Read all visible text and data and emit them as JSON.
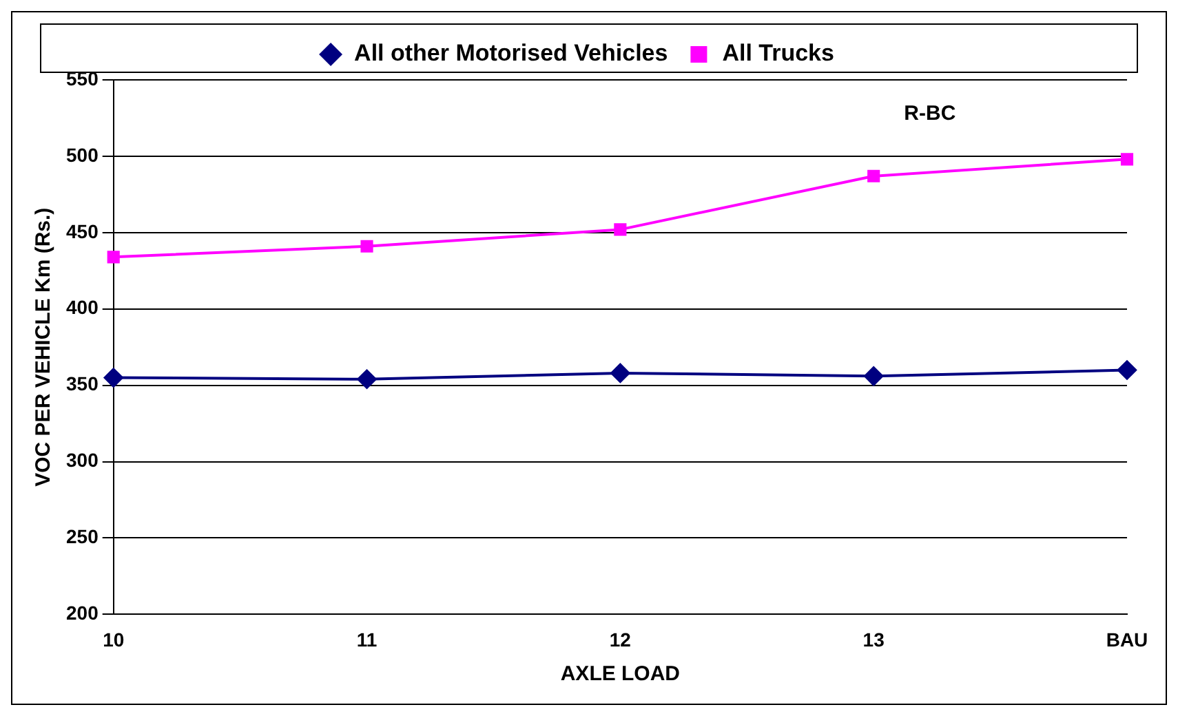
{
  "chart_data": {
    "type": "line",
    "xlabel": "AXLE LOAD",
    "ylabel": "VOC PER VEHICLE Km (Rs.)",
    "categories": [
      "10",
      "11",
      "12",
      "13",
      "BAU"
    ],
    "series": [
      {
        "name": "All other Motorised Vehicles",
        "color": "#000080",
        "values": [
          355,
          354,
          358,
          356,
          360
        ],
        "marker": "diamond"
      },
      {
        "name": "All Trucks",
        "color": "#ff00ff",
        "values": [
          434,
          441,
          452,
          487,
          498
        ],
        "marker": "square"
      }
    ],
    "ylim": [
      200,
      550
    ],
    "yticks": [
      200,
      250,
      300,
      350,
      400,
      450,
      500,
      550
    ],
    "grid": "y",
    "legend": "top",
    "annotations": [
      "R-BC"
    ]
  }
}
